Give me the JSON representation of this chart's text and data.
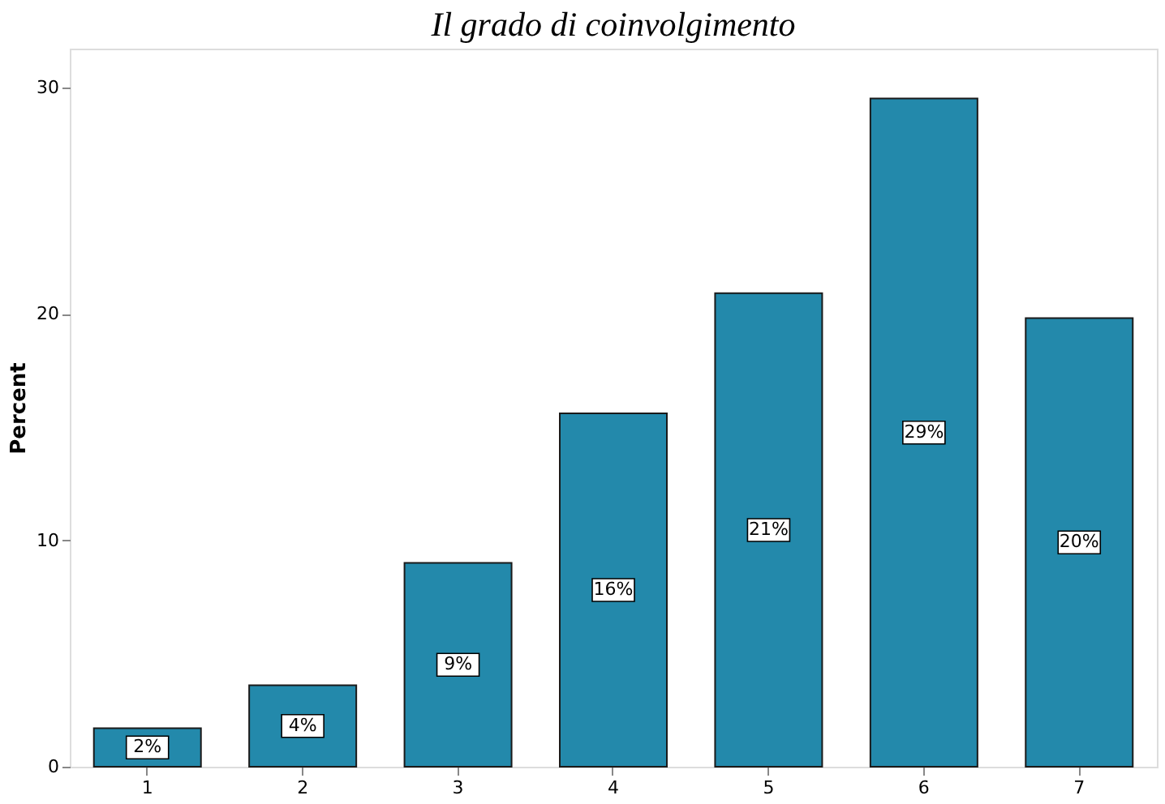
{
  "chart_data": {
    "type": "bar",
    "title": "Il grado di coinvolgimento",
    "ylabel": "Percent",
    "categories": [
      "1",
      "2",
      "3",
      "4",
      "5",
      "6",
      "7"
    ],
    "values": [
      1.7,
      3.6,
      9.0,
      15.6,
      20.9,
      29.5,
      19.8
    ],
    "value_labels": [
      "2%",
      "4%",
      "9%",
      "16%",
      "21%",
      "29%",
      "20%"
    ],
    "color": "#2389ab",
    "ylim": [
      0,
      31.7
    ],
    "yticks": [
      0,
      10,
      20,
      30
    ],
    "grid": false
  }
}
